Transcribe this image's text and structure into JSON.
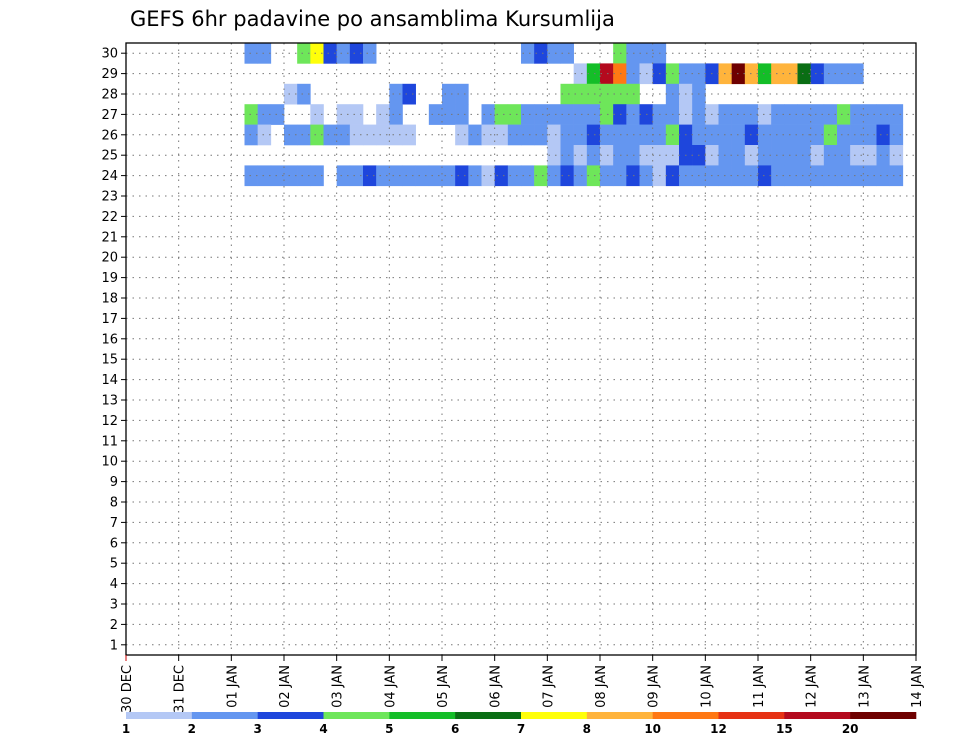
{
  "chart_data": {
    "type": "heatmap",
    "title": "GEFS 6hr padavine po ansamblima Kursumlija",
    "x_tick_labels": [
      "30 DEC",
      "31 DEC",
      "01 JAN",
      "02 JAN",
      "03 JAN",
      "04 JAN",
      "05 JAN",
      "06 JAN",
      "07 JAN",
      "08 JAN",
      "09 JAN",
      "10 JAN",
      "11 JAN",
      "12 JAN",
      "13 JAN",
      "14 JAN"
    ],
    "y_tick_labels": [
      "1",
      "2",
      "3",
      "4",
      "5",
      "6",
      "7",
      "8",
      "9",
      "10",
      "11",
      "12",
      "13",
      "14",
      "15",
      "16",
      "17",
      "18",
      "19",
      "20",
      "21",
      "22",
      "23",
      "24",
      "25",
      "26",
      "27",
      "28",
      "29",
      "30"
    ],
    "time_steps_per_day": 4,
    "ylim": [
      1,
      30
    ],
    "grid": "dotted",
    "colorbar": {
      "placement": "bottom",
      "labels": [
        "1",
        "2",
        "3",
        "4",
        "5",
        "6",
        "7",
        "8",
        "10",
        "12",
        "15",
        "20"
      ],
      "colors": [
        "#b4c8f5",
        "#6496f0",
        "#1e46dc",
        "#6ee65a",
        "#14be28",
        "#0a6e14",
        "#ffff0a",
        "#ffb43c",
        "#ff7814",
        "#e63214",
        "#b40a1e",
        "#6e0000"
      ]
    },
    "cells": [
      [
        9,
        30,
        1
      ],
      [
        10,
        30,
        1
      ],
      [
        13,
        30,
        3
      ],
      [
        14,
        30,
        6
      ],
      [
        15,
        30,
        2
      ],
      [
        16,
        30,
        1
      ],
      [
        17,
        30,
        2
      ],
      [
        18,
        30,
        1
      ],
      [
        30,
        30,
        1
      ],
      [
        31,
        30,
        2
      ],
      [
        32,
        30,
        1
      ],
      [
        33,
        30,
        1
      ],
      [
        37,
        30,
        3
      ],
      [
        38,
        30,
        1
      ],
      [
        39,
        30,
        1
      ],
      [
        40,
        30,
        1
      ],
      [
        34,
        29,
        0
      ],
      [
        35,
        29,
        4
      ],
      [
        36,
        29,
        10
      ],
      [
        37,
        29,
        8
      ],
      [
        38,
        29,
        1
      ],
      [
        39,
        29,
        0
      ],
      [
        40,
        29,
        2
      ],
      [
        41,
        29,
        3
      ],
      [
        42,
        29,
        1
      ],
      [
        43,
        29,
        1
      ],
      [
        44,
        29,
        2
      ],
      [
        45,
        29,
        7
      ],
      [
        46,
        29,
        11
      ],
      [
        47,
        29,
        7
      ],
      [
        48,
        29,
        4
      ],
      [
        49,
        29,
        7
      ],
      [
        50,
        29,
        7
      ],
      [
        51,
        29,
        5
      ],
      [
        52,
        29,
        2
      ],
      [
        53,
        29,
        1
      ],
      [
        54,
        29,
        1
      ],
      [
        55,
        29,
        1
      ],
      [
        12,
        28,
        0
      ],
      [
        13,
        28,
        1
      ],
      [
        20,
        28,
        1
      ],
      [
        21,
        28,
        2
      ],
      [
        24,
        28,
        1
      ],
      [
        25,
        28,
        1
      ],
      [
        33,
        28,
        3
      ],
      [
        34,
        28,
        3
      ],
      [
        35,
        28,
        3
      ],
      [
        36,
        28,
        3
      ],
      [
        37,
        28,
        3
      ],
      [
        38,
        28,
        3
      ],
      [
        41,
        28,
        1
      ],
      [
        42,
        28,
        0
      ],
      [
        43,
        28,
        1
      ],
      [
        9,
        27,
        3
      ],
      [
        10,
        27,
        1
      ],
      [
        11,
        27,
        1
      ],
      [
        14,
        27,
        0
      ],
      [
        16,
        27,
        0
      ],
      [
        17,
        27,
        0
      ],
      [
        19,
        27,
        0
      ],
      [
        20,
        27,
        1
      ],
      [
        23,
        27,
        1
      ],
      [
        24,
        27,
        1
      ],
      [
        25,
        27,
        1
      ],
      [
        27,
        27,
        1
      ],
      [
        28,
        27,
        3
      ],
      [
        29,
        27,
        3
      ],
      [
        30,
        27,
        1
      ],
      [
        31,
        27,
        1
      ],
      [
        32,
        27,
        1
      ],
      [
        33,
        27,
        1
      ],
      [
        34,
        27,
        1
      ],
      [
        35,
        27,
        1
      ],
      [
        36,
        27,
        3
      ],
      [
        37,
        27,
        2
      ],
      [
        38,
        27,
        1
      ],
      [
        39,
        27,
        2
      ],
      [
        40,
        27,
        1
      ],
      [
        41,
        27,
        1
      ],
      [
        42,
        27,
        0
      ],
      [
        43,
        27,
        1
      ],
      [
        44,
        27,
        0
      ],
      [
        45,
        27,
        1
      ],
      [
        46,
        27,
        1
      ],
      [
        47,
        27,
        1
      ],
      [
        48,
        27,
        0
      ],
      [
        49,
        27,
        1
      ],
      [
        50,
        27,
        1
      ],
      [
        51,
        27,
        1
      ],
      [
        52,
        27,
        1
      ],
      [
        53,
        27,
        1
      ],
      [
        54,
        27,
        3
      ],
      [
        55,
        27,
        1
      ],
      [
        56,
        27,
        1
      ],
      [
        57,
        27,
        1
      ],
      [
        58,
        27,
        1
      ],
      [
        9,
        26,
        1
      ],
      [
        10,
        26,
        0
      ],
      [
        12,
        26,
        1
      ],
      [
        13,
        26,
        1
      ],
      [
        14,
        26,
        3
      ],
      [
        15,
        26,
        1
      ],
      [
        16,
        26,
        1
      ],
      [
        17,
        26,
        0
      ],
      [
        18,
        26,
        0
      ],
      [
        19,
        26,
        0
      ],
      [
        20,
        26,
        0
      ],
      [
        21,
        26,
        0
      ],
      [
        25,
        26,
        0
      ],
      [
        26,
        26,
        1
      ],
      [
        27,
        26,
        0
      ],
      [
        28,
        26,
        0
      ],
      [
        29,
        26,
        1
      ],
      [
        30,
        26,
        1
      ],
      [
        31,
        26,
        1
      ],
      [
        32,
        26,
        0
      ],
      [
        33,
        26,
        1
      ],
      [
        34,
        26,
        1
      ],
      [
        35,
        26,
        2
      ],
      [
        36,
        26,
        1
      ],
      [
        37,
        26,
        1
      ],
      [
        38,
        26,
        1
      ],
      [
        39,
        26,
        1
      ],
      [
        40,
        26,
        1
      ],
      [
        41,
        26,
        3
      ],
      [
        42,
        26,
        2
      ],
      [
        43,
        26,
        1
      ],
      [
        44,
        26,
        1
      ],
      [
        45,
        26,
        1
      ],
      [
        46,
        26,
        1
      ],
      [
        47,
        26,
        2
      ],
      [
        48,
        26,
        1
      ],
      [
        49,
        26,
        1
      ],
      [
        50,
        26,
        1
      ],
      [
        51,
        26,
        1
      ],
      [
        52,
        26,
        1
      ],
      [
        53,
        26,
        3
      ],
      [
        54,
        26,
        1
      ],
      [
        55,
        26,
        1
      ],
      [
        56,
        26,
        1
      ],
      [
        57,
        26,
        2
      ],
      [
        58,
        26,
        1
      ],
      [
        32,
        25,
        0
      ],
      [
        33,
        25,
        1
      ],
      [
        34,
        25,
        0
      ],
      [
        35,
        25,
        1
      ],
      [
        36,
        25,
        0
      ],
      [
        37,
        25,
        1
      ],
      [
        38,
        25,
        1
      ],
      [
        39,
        25,
        0
      ],
      [
        40,
        25,
        0
      ],
      [
        41,
        25,
        0
      ],
      [
        42,
        25,
        2
      ],
      [
        43,
        25,
        2
      ],
      [
        44,
        25,
        0
      ],
      [
        45,
        25,
        1
      ],
      [
        46,
        25,
        1
      ],
      [
        47,
        25,
        0
      ],
      [
        48,
        25,
        1
      ],
      [
        49,
        25,
        1
      ],
      [
        50,
        25,
        1
      ],
      [
        51,
        25,
        1
      ],
      [
        52,
        25,
        0
      ],
      [
        53,
        25,
        1
      ],
      [
        54,
        25,
        1
      ],
      [
        55,
        25,
        0
      ],
      [
        56,
        25,
        0
      ],
      [
        57,
        25,
        1
      ],
      [
        58,
        25,
        0
      ],
      [
        9,
        24,
        1
      ],
      [
        10,
        24,
        1
      ],
      [
        11,
        24,
        1
      ],
      [
        12,
        24,
        1
      ],
      [
        13,
        24,
        1
      ],
      [
        14,
        24,
        1
      ],
      [
        16,
        24,
        1
      ],
      [
        17,
        24,
        1
      ],
      [
        18,
        24,
        2
      ],
      [
        19,
        24,
        1
      ],
      [
        20,
        24,
        1
      ],
      [
        21,
        24,
        1
      ],
      [
        22,
        24,
        1
      ],
      [
        23,
        24,
        1
      ],
      [
        24,
        24,
        1
      ],
      [
        25,
        24,
        2
      ],
      [
        26,
        24,
        1
      ],
      [
        27,
        24,
        0
      ],
      [
        28,
        24,
        2
      ],
      [
        29,
        24,
        1
      ],
      [
        30,
        24,
        1
      ],
      [
        31,
        24,
        3
      ],
      [
        32,
        24,
        1
      ],
      [
        33,
        24,
        2
      ],
      [
        34,
        24,
        1
      ],
      [
        35,
        24,
        3
      ],
      [
        36,
        24,
        1
      ],
      [
        37,
        24,
        1
      ],
      [
        38,
        24,
        2
      ],
      [
        39,
        24,
        1
      ],
      [
        40,
        24,
        0
      ],
      [
        41,
        24,
        2
      ],
      [
        42,
        24,
        1
      ],
      [
        43,
        24,
        1
      ],
      [
        44,
        24,
        1
      ],
      [
        45,
        24,
        1
      ],
      [
        46,
        24,
        1
      ],
      [
        47,
        24,
        1
      ],
      [
        48,
        24,
        2
      ],
      [
        49,
        24,
        1
      ],
      [
        50,
        24,
        1
      ],
      [
        51,
        24,
        1
      ],
      [
        52,
        24,
        1
      ],
      [
        53,
        24,
        1
      ],
      [
        54,
        24,
        1
      ],
      [
        55,
        24,
        1
      ],
      [
        56,
        24,
        1
      ],
      [
        57,
        24,
        1
      ],
      [
        58,
        24,
        1
      ]
    ]
  }
}
